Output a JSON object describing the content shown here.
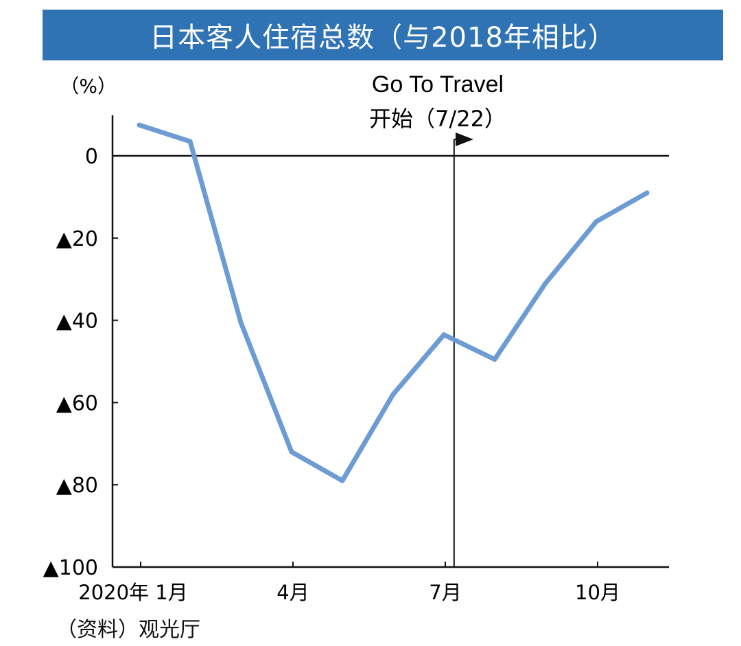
{
  "title": "日本客人住宿总数（与2018年相比）",
  "source": "（资料）观光厅",
  "chart_data": {
    "type": "line",
    "title": "日本客人住宿总数（与2018年相比）",
    "ylabel": "（%）",
    "xlabel": "",
    "ylim": [
      -100,
      10
    ],
    "yticks": [
      0,
      -20,
      -40,
      -60,
      -80,
      -100
    ],
    "ytick_labels": [
      "0",
      "▲20",
      "▲40",
      "▲60",
      "▲80",
      "▲100"
    ],
    "x": [
      1,
      2,
      3,
      4,
      5,
      6,
      7,
      8,
      9,
      10,
      11
    ],
    "xticks": [
      1,
      4,
      7,
      10
    ],
    "xtick_labels": [
      "2020年 1月",
      "4月",
      "7月",
      "10月"
    ],
    "series": [
      {
        "values": [
          7.5,
          3.5,
          -40.5,
          -72,
          -79,
          -58,
          -43.5,
          -49.5,
          -31,
          -16,
          -9
        ],
        "color": "#6d9bd3"
      }
    ],
    "grid": false,
    "annotation": {
      "text_line1": "Go To Travel",
      "text_line2": "开始（7/22）",
      "x": 7.2
    }
  }
}
